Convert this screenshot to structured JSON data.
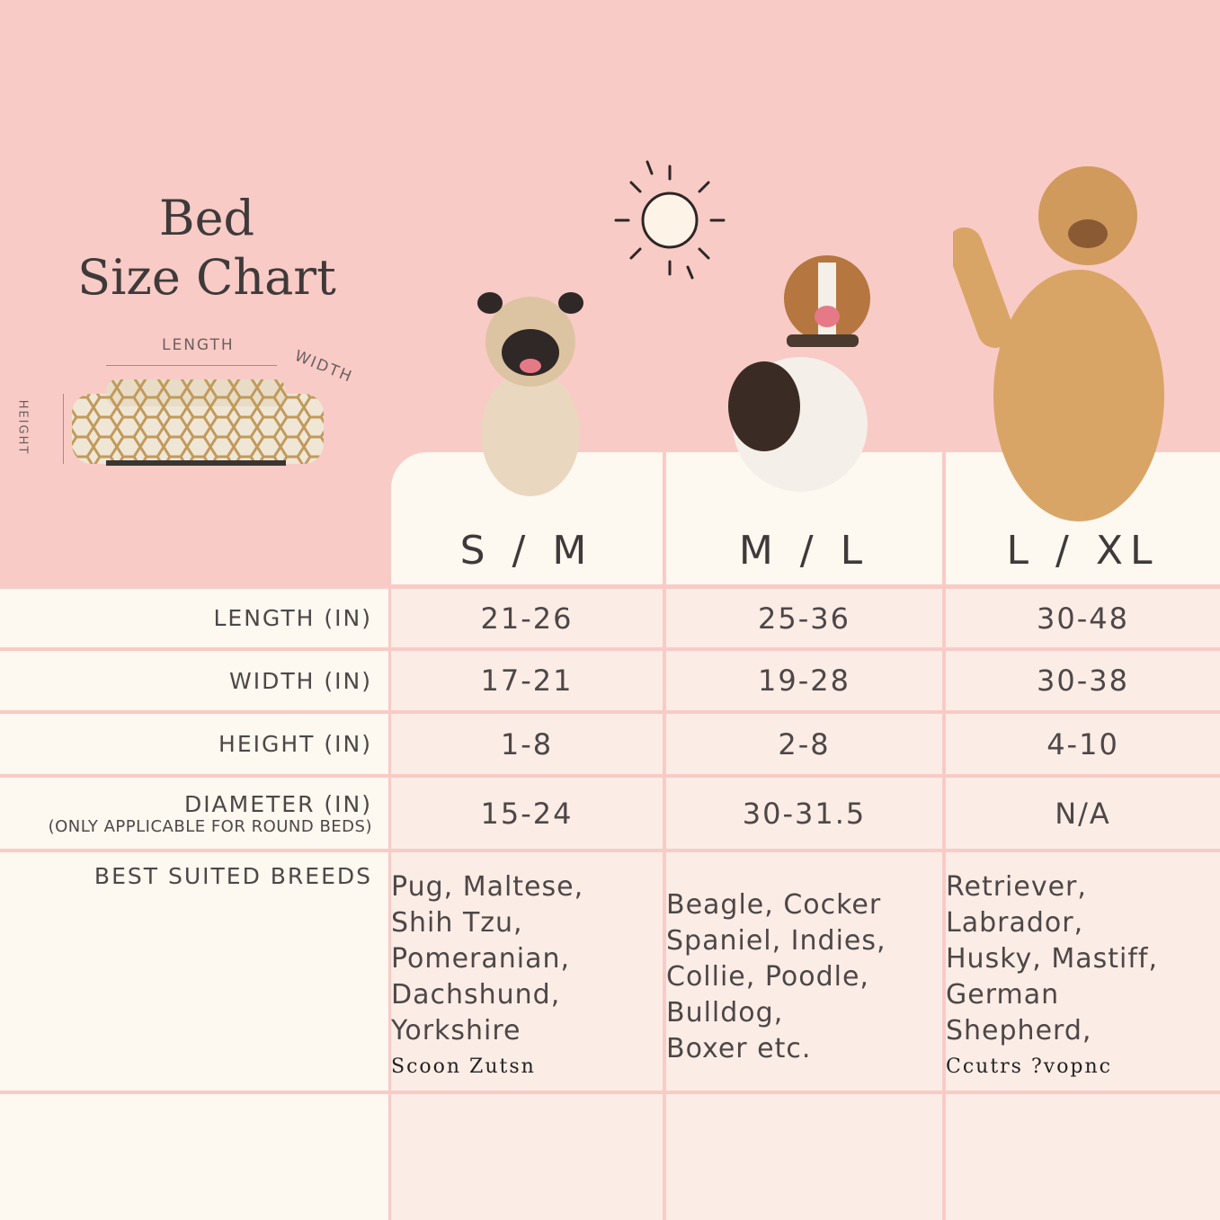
{
  "title": {
    "line1": "Bed",
    "line2": "Size Chart"
  },
  "diagram": {
    "length": "LENGTH",
    "width": "WIDTH",
    "height": "HEIGHT"
  },
  "sizes": [
    "S / M",
    "M / L",
    "L / XL"
  ],
  "rows": [
    {
      "label": "LENGTH (IN)",
      "values": [
        "21-26",
        "25-36",
        "30-48"
      ]
    },
    {
      "label": "WIDTH (IN)",
      "values": [
        "17-21",
        "19-28",
        "30-38"
      ]
    },
    {
      "label": "HEIGHT (IN)",
      "values": [
        "1-8",
        "2-8",
        "4-10"
      ]
    },
    {
      "label": "DIAMETER (IN)",
      "sublabel": "(ONLY APPLICABLE FOR ROUND BEDS)",
      "values": [
        "15-24",
        "30-31.5",
        "N/A"
      ]
    }
  ],
  "breeds": {
    "label": "BEST SUITED BREEDS",
    "values": [
      {
        "lines": [
          "Pug, Maltese,",
          "Shih Tzu,",
          "Pomeranian,",
          "Dachshund,",
          "Yorkshire"
        ],
        "garbled": "Scoon Zutsn"
      },
      {
        "lines": [
          "Beagle, Cocker",
          "Spaniel, Indies,",
          "Collie, Poodle,",
          "Bulldog,",
          "Boxer etc."
        ],
        "garbled": ""
      },
      {
        "lines": [
          "Retriever,",
          "Labrador,",
          "Husky, Mastiff,",
          "German",
          "Shepherd,"
        ],
        "garbled": "Ccutrs ?vopnc"
      }
    ]
  },
  "colors": {
    "background": "#f9cbc6",
    "cream": "#fdf8f0",
    "cell": "#fcece6"
  }
}
